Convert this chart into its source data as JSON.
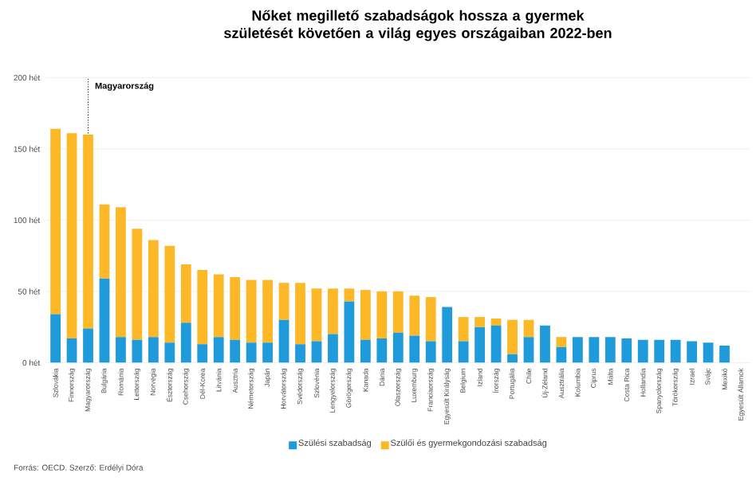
{
  "chart_data": {
    "type": "bar",
    "stacked": true,
    "title": "Nőket megillető szabadságok hossza a gyermek születését követően a világ egyes országaiban 2022-ben",
    "categories": [
      "Szlovákia",
      "Finnország",
      "Magyarország",
      "Bulgária",
      "Románia",
      "Lettország",
      "Norvégia",
      "Észtország",
      "Csehország",
      "Dél-Korea",
      "Litvánia",
      "Ausztria",
      "Németország",
      "Japán",
      "Horvátország",
      "Svédország",
      "Szlovénia",
      "Lengyelország",
      "Görögország",
      "Kanada",
      "Dánia",
      "Olaszország",
      "Luxemburg",
      "Franciaország",
      "Egyesült Királyság",
      "Belgium",
      "Izland",
      "Írország",
      "Portugália",
      "Chile",
      "Új-Zéland",
      "Ausztrália",
      "Kolumbia",
      "Ciprus",
      "Málta",
      "Costa Rica",
      "Hollandia",
      "Spanyolország",
      "Törökország",
      "Izrael",
      "Svájc",
      "Mexikó",
      "Egyesült Államok"
    ],
    "series": [
      {
        "name": "Szülési szabadság",
        "color": "#1f9bdc",
        "values": [
          34,
          17,
          24,
          59,
          18,
          16,
          18,
          14,
          28,
          13,
          18,
          16,
          14,
          14,
          30,
          13,
          15,
          20,
          43,
          16,
          17,
          21,
          19,
          15,
          39,
          15,
          25,
          26,
          6,
          18,
          26,
          11,
          18,
          18,
          18,
          17,
          16,
          16,
          16,
          15,
          14,
          12,
          0
        ]
      },
      {
        "name": "Szülői és gyermekgondozási szabadság",
        "color": "#fdb827",
        "values": [
          130,
          144,
          136,
          52,
          91,
          78,
          68,
          68,
          41,
          52,
          44,
          44,
          44,
          44,
          26,
          43,
          37,
          32,
          9,
          35,
          33,
          29,
          28,
          31,
          0,
          17,
          7,
          5,
          24,
          12,
          0,
          7,
          0,
          0,
          0,
          0,
          0,
          0,
          0,
          0,
          0,
          0,
          0
        ]
      }
    ],
    "ylim": [
      0,
      200
    ],
    "yticks": [
      {
        "value": 0,
        "label": "0 hét"
      },
      {
        "value": 50,
        "label": "50 hét"
      },
      {
        "value": 100,
        "label": "100 hét"
      },
      {
        "value": 150,
        "label": "150 hét"
      },
      {
        "value": 200,
        "label": "200 hét"
      }
    ],
    "grid": "y",
    "legend": "bottom",
    "ref_lines": [
      {
        "axis": "x",
        "value": "Magyarország",
        "label": "Magyarország",
        "line_style": "dotted",
        "color": "#333333"
      }
    ],
    "annotations": [
      "Forrás: OECD. Szerző: Erdélyi Dóra"
    ]
  }
}
